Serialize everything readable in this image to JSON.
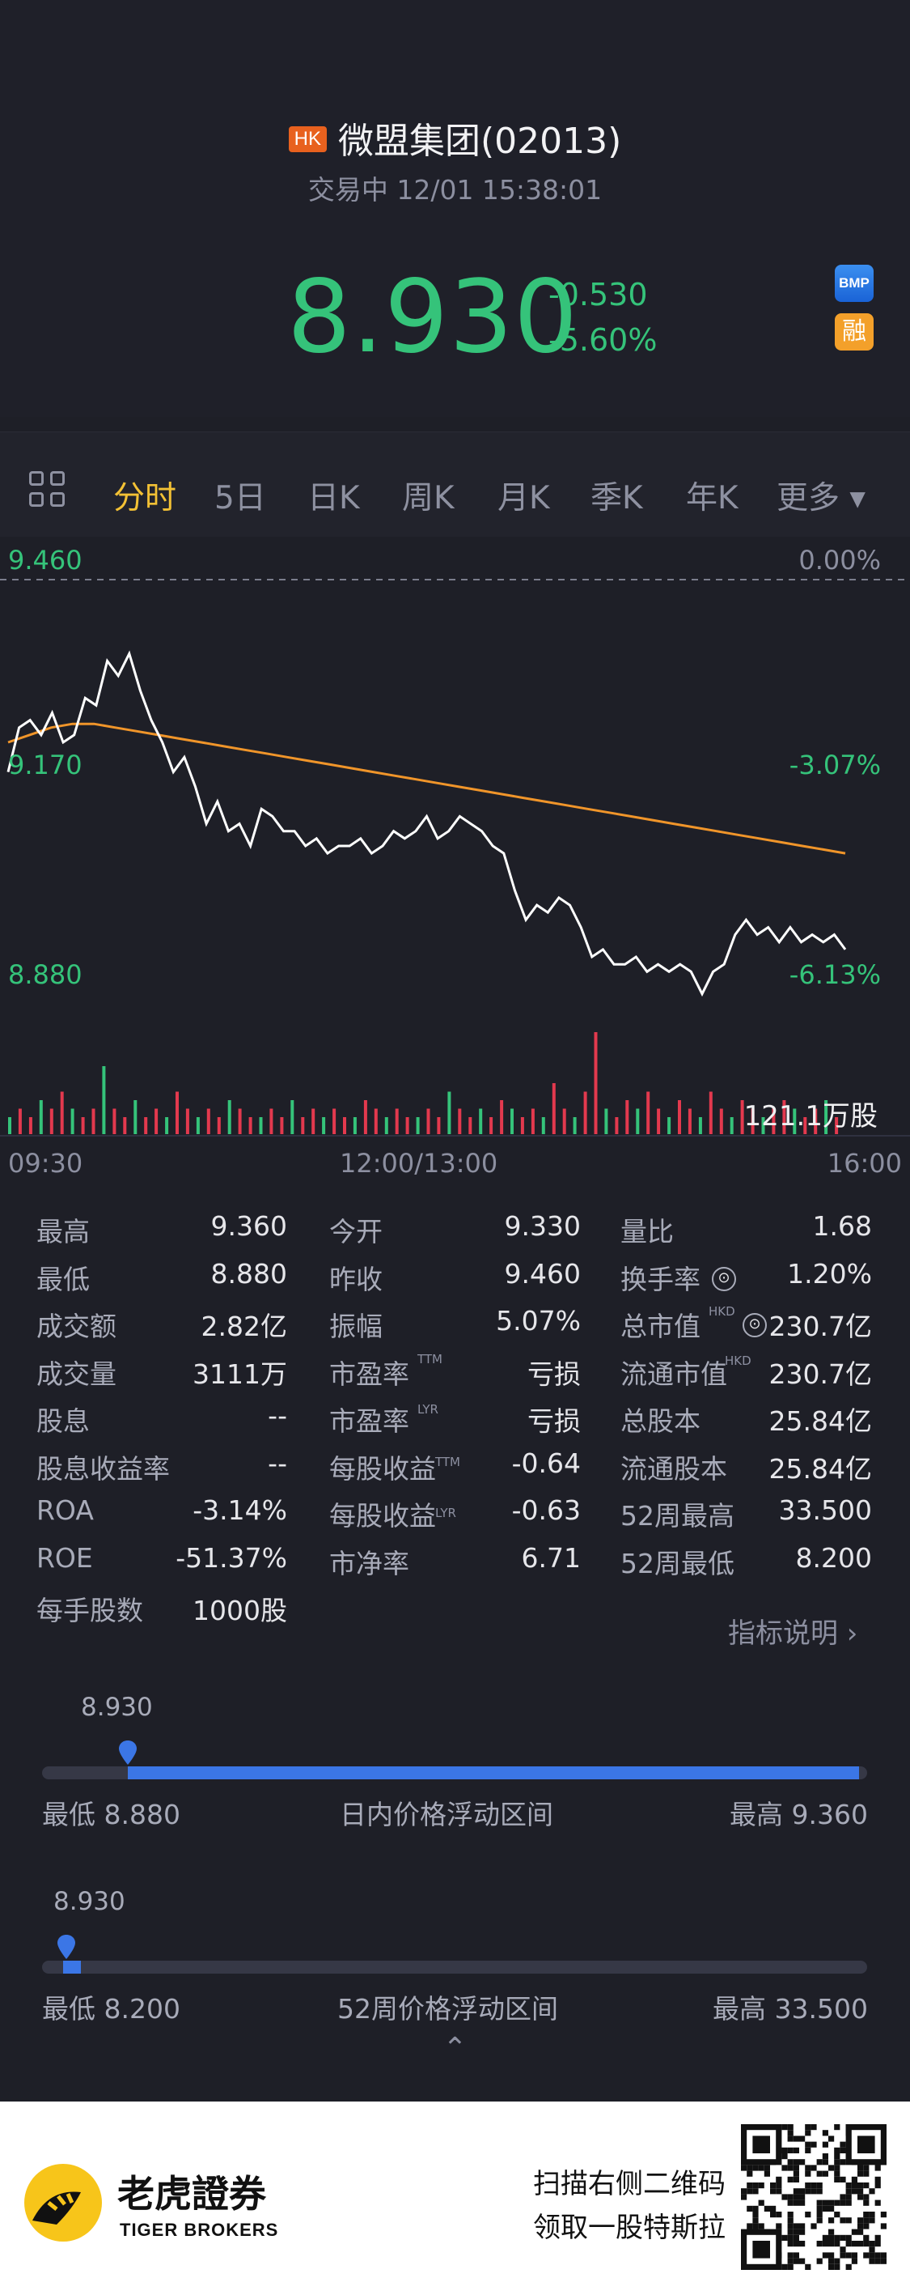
{
  "header": {
    "market_badge": "HK",
    "stock_name": "微盟集团(02013)",
    "status": "交易中 12/01 15:38:01",
    "price": "8.930",
    "change": "-0.530",
    "change_pct": "-5.60%",
    "badge_bmp": "BMP",
    "badge_rong": "融"
  },
  "tabs": [
    {
      "label": "分时",
      "active": true
    },
    {
      "label": "5日"
    },
    {
      "label": "日K"
    },
    {
      "label": "周K"
    },
    {
      "label": "月K"
    },
    {
      "label": "季K"
    },
    {
      "label": "年K"
    },
    {
      "label": "更多 ▾"
    }
  ],
  "chart_data": {
    "type": "line",
    "y_left": [
      "9.460",
      "9.170",
      "8.880"
    ],
    "y_right": [
      "0.00%",
      "-3.07%",
      "-6.13%"
    ],
    "x_ticks": [
      "09:30",
      "12:00/13:00",
      "16:00"
    ],
    "volume_label": "121.1万股",
    "ylim": [
      8.88,
      9.46
    ],
    "series": [
      {
        "color": "#ffffff",
        "values": [
          9.2,
          9.26,
          9.27,
          9.25,
          9.28,
          9.24,
          9.25,
          9.3,
          9.29,
          9.35,
          9.33,
          9.36,
          9.31,
          9.27,
          9.24,
          9.2,
          9.22,
          9.18,
          9.13,
          9.16,
          9.12,
          9.13,
          9.1,
          9.15,
          9.14,
          9.12,
          9.12,
          9.1,
          9.11,
          9.09,
          9.1,
          9.1,
          9.11,
          9.09,
          9.1,
          9.12,
          9.11,
          9.12,
          9.14,
          9.11,
          9.12,
          9.14,
          9.13,
          9.12,
          9.1,
          9.09,
          9.04,
          9.0,
          9.02,
          9.01,
          9.03,
          9.02,
          8.99,
          8.95,
          8.96,
          8.94,
          8.94,
          8.95,
          8.93,
          8.94,
          8.93,
          8.94,
          8.93,
          8.9,
          8.93,
          8.94,
          8.98,
          9.0,
          8.98,
          8.99,
          8.97,
          8.99,
          8.97,
          8.98,
          8.97,
          8.98,
          8.96
        ]
      },
      {
        "color": "#f0952a",
        "values": [
          9.24,
          9.25,
          9.26,
          9.265,
          9.265,
          9.26,
          9.255,
          9.25,
          9.245,
          9.24,
          9.235,
          9.23,
          9.225,
          9.22,
          9.215,
          9.21,
          9.205,
          9.2,
          9.195,
          9.19,
          9.185,
          9.18,
          9.175,
          9.17,
          9.165,
          9.16,
          9.155,
          9.15,
          9.145,
          9.14,
          9.135,
          9.13,
          9.125,
          9.12,
          9.115,
          9.11,
          9.105,
          9.1,
          9.095,
          9.09
        ]
      }
    ],
    "volume": [
      2,
      3,
      2,
      4,
      3,
      5,
      3,
      2,
      3,
      8,
      3,
      2,
      4,
      2,
      3,
      2,
      5,
      3,
      2,
      3,
      2,
      4,
      3,
      2,
      2,
      3,
      2,
      4,
      2,
      3,
      2,
      3,
      2,
      2,
      4,
      3,
      2,
      3,
      2,
      2,
      3,
      2,
      5,
      3,
      2,
      3,
      2,
      4,
      3,
      2,
      3,
      2,
      6,
      3,
      2,
      5,
      12,
      3,
      2,
      4,
      3,
      5,
      3,
      2,
      4,
      3,
      2,
      5,
      3,
      2,
      4,
      3,
      2,
      3,
      4,
      3,
      2,
      3,
      4,
      2
    ]
  },
  "stats": [
    [
      "最高",
      "9.360",
      "今开",
      "9.330",
      "量比",
      "1.68"
    ],
    [
      "最低",
      "8.880",
      "昨收",
      "9.460",
      "换手率",
      "1.20%"
    ],
    [
      "成交额",
      "2.82亿",
      "振幅",
      "5.07%",
      "总市值",
      "230.7亿"
    ],
    [
      "成交量",
      "3111万",
      "市盈率",
      "亏损",
      "流通市值",
      "230.7亿"
    ],
    [
      "股息",
      "--",
      "市盈率",
      "亏损",
      "总股本",
      "25.84亿"
    ],
    [
      "股息收益率",
      "--",
      "每股收益",
      "-0.64",
      "流通股本",
      "25.84亿"
    ],
    [
      "ROA",
      "-3.14%",
      "每股收益",
      "-0.63",
      "52周最高",
      "33.500"
    ],
    [
      "ROE",
      "-51.37%",
      "市净率",
      "6.71",
      "52周最低",
      "8.200"
    ],
    [
      "每手股数",
      "1000股"
    ]
  ],
  "superscripts": {
    "ttm": "TTM",
    "lyr": "LYR",
    "hkd": "HKD"
  },
  "info_icon": "⊙",
  "explain": "指标说明 ›",
  "range_intraday": {
    "current": "8.930",
    "low": "最低 8.880",
    "title": "日内价格浮动区间",
    "high": "最高 9.360",
    "position": 0.104
  },
  "range_52w": {
    "current": "8.930",
    "low": "最低 8.200",
    "title": "52周价格浮动区间",
    "high": "最高 33.500",
    "position": 0.029
  },
  "collapse": "⌃",
  "footer": {
    "brand_cn": "老虎證券",
    "brand_en": "TIGER BROKERS",
    "promo_line1": "扫描右侧二维码",
    "promo_line2": "领取一股特斯拉"
  }
}
